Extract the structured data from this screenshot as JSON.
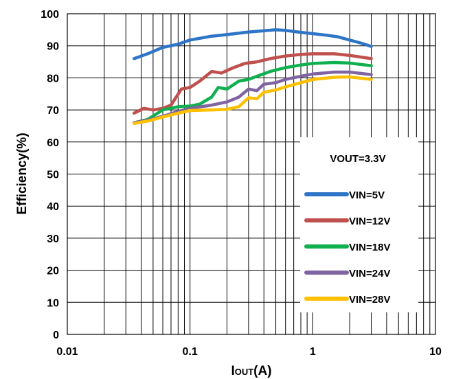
{
  "chart_data": {
    "type": "line",
    "x_scale": "log",
    "xlim": [
      0.01,
      10
    ],
    "ylim": [
      0,
      100
    ],
    "x_ticks": [
      "0.01",
      "0.1",
      "1",
      "10"
    ],
    "y_ticks": [
      "0",
      "10",
      "20",
      "30",
      "40",
      "50",
      "60",
      "70",
      "80",
      "90",
      "100"
    ],
    "xlabel_main": "I",
    "xlabel_sub": "OUT",
    "xlabel_suffix": "(A)",
    "ylabel": "Efficiency(%)",
    "grid": true,
    "legend_position": "right",
    "legend_title": "VOUT=3.3V",
    "series": [
      {
        "name": "VIN=5V",
        "color": "#2E75C8",
        "points": [
          [
            0.035,
            86
          ],
          [
            0.045,
            87.5
          ],
          [
            0.06,
            89.5
          ],
          [
            0.08,
            90.5
          ],
          [
            0.1,
            91.8
          ],
          [
            0.15,
            93
          ],
          [
            0.2,
            93.5
          ],
          [
            0.3,
            94.3
          ],
          [
            0.4,
            94.7
          ],
          [
            0.5,
            95
          ],
          [
            0.6,
            94.8
          ],
          [
            0.8,
            94.2
          ],
          [
            1.0,
            93.8
          ],
          [
            1.3,
            93.3
          ],
          [
            1.6,
            92.8
          ],
          [
            2.0,
            91.8
          ],
          [
            2.5,
            90.8
          ],
          [
            3.0,
            89.8
          ]
        ]
      },
      {
        "name": "VIN=12V",
        "color": "#C0504D",
        "points": [
          [
            0.035,
            69
          ],
          [
            0.042,
            70.5
          ],
          [
            0.05,
            70
          ],
          [
            0.06,
            70.5
          ],
          [
            0.07,
            71.5
          ],
          [
            0.085,
            76.5
          ],
          [
            0.1,
            77
          ],
          [
            0.12,
            79
          ],
          [
            0.15,
            82
          ],
          [
            0.18,
            81.5
          ],
          [
            0.22,
            83
          ],
          [
            0.28,
            84.5
          ],
          [
            0.35,
            85
          ],
          [
            0.45,
            86
          ],
          [
            0.6,
            86.8
          ],
          [
            0.8,
            87.3
          ],
          [
            1.0,
            87.5
          ],
          [
            1.5,
            87.5
          ],
          [
            2.0,
            87
          ],
          [
            3.0,
            86
          ]
        ]
      },
      {
        "name": "VIN=18V",
        "color": "#10B050",
        "points": [
          [
            0.035,
            66
          ],
          [
            0.045,
            67
          ],
          [
            0.06,
            70
          ],
          [
            0.08,
            71
          ],
          [
            0.1,
            71.2
          ],
          [
            0.12,
            71.8
          ],
          [
            0.15,
            74
          ],
          [
            0.17,
            77
          ],
          [
            0.2,
            76.5
          ],
          [
            0.25,
            79
          ],
          [
            0.3,
            79.5
          ],
          [
            0.35,
            80.5
          ],
          [
            0.45,
            82
          ],
          [
            0.6,
            83.2
          ],
          [
            0.8,
            84
          ],
          [
            1.0,
            84.5
          ],
          [
            1.5,
            84.8
          ],
          [
            2.0,
            84.6
          ],
          [
            3.0,
            83.8
          ]
        ]
      },
      {
        "name": "VIN=24V",
        "color": "#8064A2",
        "points": [
          [
            0.035,
            66
          ],
          [
            0.045,
            66.8
          ],
          [
            0.06,
            68
          ],
          [
            0.08,
            69.5
          ],
          [
            0.1,
            70.5
          ],
          [
            0.15,
            71.5
          ],
          [
            0.2,
            72.5
          ],
          [
            0.25,
            74
          ],
          [
            0.3,
            76.5
          ],
          [
            0.35,
            76
          ],
          [
            0.4,
            78
          ],
          [
            0.5,
            78.5
          ],
          [
            0.6,
            79.5
          ],
          [
            0.8,
            80.5
          ],
          [
            1.0,
            81.2
          ],
          [
            1.5,
            81.8
          ],
          [
            2.0,
            81.8
          ],
          [
            3.0,
            81
          ]
        ]
      },
      {
        "name": "VIN=28V",
        "color": "#FFC000",
        "points": [
          [
            0.035,
            65.8
          ],
          [
            0.045,
            66.5
          ],
          [
            0.06,
            67.8
          ],
          [
            0.08,
            69
          ],
          [
            0.1,
            69.8
          ],
          [
            0.15,
            70
          ],
          [
            0.2,
            70.2
          ],
          [
            0.25,
            71
          ],
          [
            0.3,
            73.8
          ],
          [
            0.35,
            73.5
          ],
          [
            0.4,
            75.5
          ],
          [
            0.5,
            76.2
          ],
          [
            0.6,
            77.2
          ],
          [
            0.8,
            78.5
          ],
          [
            1.0,
            79.5
          ],
          [
            1.5,
            80.2
          ],
          [
            2.0,
            80.3
          ],
          [
            3.0,
            79.5
          ]
        ]
      }
    ]
  }
}
